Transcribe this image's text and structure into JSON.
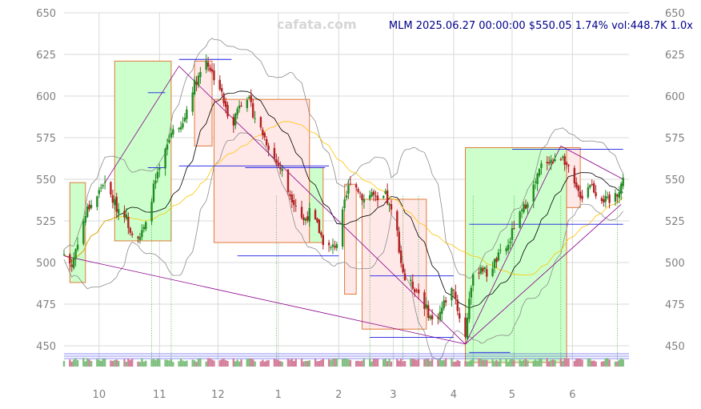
{
  "watermark": "cafata.com",
  "header": {
    "text": "MLM 2025.06.27 00:00:00 $550.05 1.74% vol:448.7K 1.0x"
  },
  "chart_data": {
    "type": "candlestick",
    "ylim": [
      440,
      650
    ],
    "y_ticks": [
      450,
      475,
      500,
      525,
      550,
      575,
      600,
      625,
      650
    ],
    "y_tick_labels": [
      "450",
      "475",
      "500",
      "525",
      "550",
      "575",
      "600",
      "625",
      "650"
    ],
    "x_tick_labels": [
      "10",
      "11",
      "12",
      "1",
      "2",
      "3",
      "4",
      "5",
      "6"
    ],
    "x_tick_dates": [
      "2024-10-01",
      "2024-11-01",
      "2024-12-01",
      "2025-01-01",
      "2025-02-01",
      "2025-03-01",
      "2025-04-01",
      "2025-05-01",
      "2025-06-01"
    ],
    "x_range": [
      "2024-09-13",
      "2025-06-30"
    ],
    "grid": true,
    "colors": {
      "up": "#228b22",
      "down": "#b22222",
      "box_up_fill": "#ccffcc",
      "box_down_fill": "#ffe8e8",
      "box_border": "#e07b39",
      "bollinger": "#8c8c8c",
      "ma_short": "#000000",
      "ma_long": "#ffc400",
      "trend": "#8b008b",
      "level": "#1a1ae6",
      "grid": "#d9d9d9",
      "volume_up": "#7fbf7f",
      "volume_down": "#d47f9b"
    },
    "anchors": [
      [
        "2024-09-13",
        505
      ],
      [
        "2024-09-17",
        498
      ],
      [
        "2024-09-20",
        513
      ],
      [
        "2024-09-25",
        532
      ],
      [
        "2024-09-30",
        540
      ],
      [
        "2024-10-03",
        548
      ],
      [
        "2024-10-07",
        540
      ],
      [
        "2024-10-10",
        533
      ],
      [
        "2024-10-14",
        530
      ],
      [
        "2024-10-17",
        520
      ],
      [
        "2024-10-22",
        516
      ],
      [
        "2024-10-25",
        522
      ],
      [
        "2024-10-29",
        545
      ],
      [
        "2024-11-01",
        555
      ],
      [
        "2024-11-05",
        570
      ],
      [
        "2024-11-08",
        582
      ],
      [
        "2024-11-11",
        578
      ],
      [
        "2024-11-13",
        583
      ],
      [
        "2024-11-15",
        592
      ],
      [
        "2024-11-18",
        605
      ],
      [
        "2024-11-21",
        612
      ],
      [
        "2024-11-25",
        622
      ],
      [
        "2024-11-28",
        614
      ],
      [
        "2024-12-02",
        605
      ],
      [
        "2024-12-05",
        592
      ],
      [
        "2024-12-09",
        585
      ],
      [
        "2024-12-12",
        596
      ],
      [
        "2024-12-16",
        600
      ],
      [
        "2024-12-19",
        590
      ],
      [
        "2024-12-23",
        580
      ],
      [
        "2024-12-27",
        570
      ],
      [
        "2024-12-31",
        560
      ],
      [
        "2025-01-03",
        555
      ],
      [
        "2025-01-06",
        543
      ],
      [
        "2025-01-10",
        535
      ],
      [
        "2025-01-14",
        525
      ],
      [
        "2025-01-17",
        530
      ],
      [
        "2025-01-21",
        522
      ],
      [
        "2025-01-24",
        513
      ],
      [
        "2025-01-28",
        508
      ],
      [
        "2025-01-31",
        512
      ],
      [
        "2025-02-04",
        535
      ],
      [
        "2025-02-07",
        550
      ],
      [
        "2025-02-11",
        544
      ],
      [
        "2025-02-14",
        538
      ],
      [
        "2025-02-18",
        542
      ],
      [
        "2025-02-21",
        535
      ],
      [
        "2025-02-25",
        540
      ],
      [
        "2025-02-28",
        530
      ],
      [
        "2025-03-03",
        518
      ],
      [
        "2025-03-05",
        500
      ],
      [
        "2025-03-07",
        490
      ],
      [
        "2025-03-11",
        486
      ],
      [
        "2025-03-14",
        482
      ],
      [
        "2025-03-18",
        472
      ],
      [
        "2025-03-21",
        465
      ],
      [
        "2025-03-25",
        470
      ],
      [
        "2025-03-28",
        478
      ],
      [
        "2025-04-01",
        485
      ],
      [
        "2025-04-03",
        472
      ],
      [
        "2025-04-07",
        455
      ],
      [
        "2025-04-09",
        480
      ],
      [
        "2025-04-11",
        490
      ],
      [
        "2025-04-15",
        498
      ],
      [
        "2025-04-18",
        493
      ],
      [
        "2025-04-22",
        500
      ],
      [
        "2025-04-25",
        505
      ],
      [
        "2025-04-29",
        510
      ],
      [
        "2025-05-02",
        522
      ],
      [
        "2025-05-06",
        530
      ],
      [
        "2025-05-09",
        538
      ],
      [
        "2025-05-13",
        548
      ],
      [
        "2025-05-16",
        558
      ],
      [
        "2025-05-20",
        562
      ],
      [
        "2025-05-23",
        560
      ],
      [
        "2025-05-27",
        565
      ],
      [
        "2025-05-30",
        555
      ],
      [
        "2025-06-03",
        543
      ],
      [
        "2025-06-06",
        540
      ],
      [
        "2025-06-10",
        548
      ],
      [
        "2025-06-13",
        542
      ],
      [
        "2025-06-17",
        538
      ],
      [
        "2025-06-20",
        536
      ],
      [
        "2025-06-24",
        542
      ],
      [
        "2025-06-27",
        550
      ]
    ],
    "boxes": [
      {
        "start": "2024-09-16",
        "end": "2024-09-24",
        "low": 488,
        "high": 548,
        "dir": "up"
      },
      {
        "start": "2024-10-09",
        "end": "2024-11-07",
        "low": 513,
        "high": 621,
        "dir": "up"
      },
      {
        "start": "2024-11-19",
        "end": "2024-11-28",
        "low": 570,
        "high": 621,
        "dir": "down"
      },
      {
        "start": "2024-11-29",
        "end": "2025-01-17",
        "low": 512,
        "high": 598,
        "dir": "down"
      },
      {
        "start": "2025-01-17",
        "end": "2025-01-24",
        "low": 512,
        "high": 557,
        "dir": "up"
      },
      {
        "start": "2025-02-04",
        "end": "2025-02-10",
        "low": 481,
        "high": 547,
        "dir": "down"
      },
      {
        "start": "2025-02-13",
        "end": "2025-03-18",
        "low": 460,
        "high": 538,
        "dir": "down"
      },
      {
        "start": "2025-04-07",
        "end": "2025-05-29",
        "low": 440,
        "high": 569,
        "dir": "up"
      },
      {
        "start": "2025-05-29",
        "end": "2025-06-05",
        "low": 533,
        "high": 569,
        "dir": "down"
      }
    ],
    "levels": [
      {
        "start": "2024-10-26",
        "end": "2024-11-04",
        "y": 602
      },
      {
        "start": "2024-10-26",
        "end": "2024-11-04",
        "y": 557
      },
      {
        "start": "2024-11-11",
        "end": "2024-12-08",
        "y": 622
      },
      {
        "start": "2024-11-11",
        "end": "2025-01-27",
        "y": 558
      },
      {
        "start": "2024-12-15",
        "end": "2025-01-25",
        "y": 557
      },
      {
        "start": "2024-12-11",
        "end": "2025-02-01",
        "y": 504
      },
      {
        "start": "2025-02-17",
        "end": "2025-04-01",
        "y": 492
      },
      {
        "start": "2025-02-17",
        "end": "2025-04-01",
        "y": 455
      },
      {
        "start": "2025-04-09",
        "end": "2025-04-30",
        "y": 446
      },
      {
        "start": "2025-04-09",
        "end": "2025-06-27",
        "y": 523
      },
      {
        "start": "2025-05-01",
        "end": "2025-06-27",
        "y": 568
      }
    ],
    "trend_lines": [
      [
        [
          "2024-09-13",
          504
        ],
        [
          "2025-04-07",
          451
        ]
      ],
      [
        [
          "2024-10-04",
          548
        ],
        [
          "2024-11-11",
          618
        ]
      ],
      [
        [
          "2024-11-11",
          618
        ],
        [
          "2025-04-07",
          451
        ]
      ],
      [
        [
          "2025-04-07",
          451
        ],
        [
          "2025-05-26",
          570
        ]
      ],
      [
        [
          "2025-05-26",
          570
        ],
        [
          "2025-06-27",
          550
        ]
      ],
      [
        [
          "2025-04-07",
          451
        ],
        [
          "2025-06-26",
          535
        ]
      ]
    ],
    "markers": [
      "2024-10-28",
      "2024-11-07",
      "2024-12-31",
      "2025-02-17",
      "2025-03-06",
      "2025-03-14",
      "2025-04-11",
      "2025-05-02",
      "2025-05-26",
      "2025-06-24"
    ]
  }
}
